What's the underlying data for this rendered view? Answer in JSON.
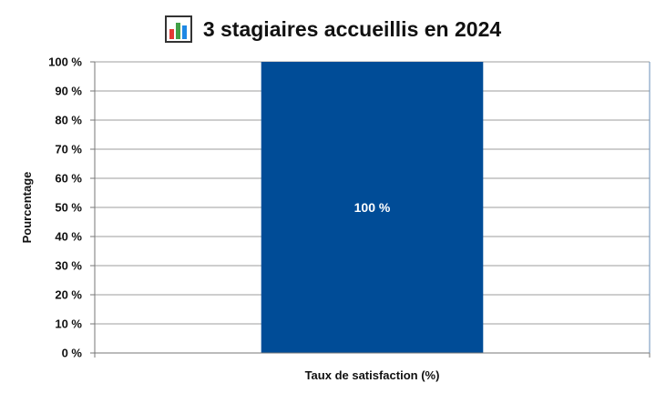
{
  "chart_data": {
    "type": "bar",
    "title": "3 stagiaires accueillis en 2024",
    "title_icon": "bar-chart-icon",
    "categories": [
      "Taux de satisfaction (%)"
    ],
    "values": [
      100
    ],
    "data_labels": [
      "100 %"
    ],
    "xlabel": "Taux de satisfaction (%)",
    "ylabel": "Pourcentage",
    "ylim": [
      0,
      100
    ],
    "yticks": [
      "0 %",
      "10 %",
      "20 %",
      "30 %",
      "40 %",
      "50 %",
      "60 %",
      "70 %",
      "80 %",
      "90 %",
      "100 %"
    ],
    "grid": true,
    "legend": "none",
    "bar_color": "#004C97",
    "grid_color": "#9e9e9e"
  }
}
